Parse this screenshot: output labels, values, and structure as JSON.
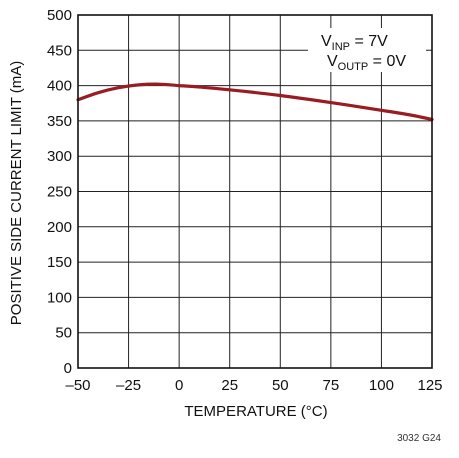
{
  "chart_data": {
    "type": "line",
    "xlabel": "TEMPERATURE (°C)",
    "ylabel": "POSITIVE SIDE CURRENT LIMIT (mA)",
    "xlim": [
      -50,
      125
    ],
    "ylim": [
      0,
      500
    ],
    "xticks": [
      -50,
      -25,
      0,
      25,
      50,
      75,
      100,
      125
    ],
    "yticks": [
      0,
      50,
      100,
      150,
      200,
      250,
      300,
      350,
      400,
      450,
      500
    ],
    "xtick_labels": [
      "–50",
      "–25",
      "0",
      "25",
      "50",
      "75",
      "100",
      "125"
    ],
    "ytick_labels": [
      "0",
      "50",
      "100",
      "150",
      "200",
      "250",
      "300",
      "350",
      "400",
      "450",
      "500"
    ],
    "grid": true,
    "series": [
      {
        "x": [
          -50,
          -40,
          -30,
          -20,
          -10,
          0,
          10,
          25,
          50,
          75,
          100,
          115,
          125
        ],
        "y": [
          380,
          390,
          397,
          401,
          402,
          400,
          398,
          394,
          386,
          376,
          365,
          358,
          352
        ]
      }
    ],
    "annotations": [
      {
        "main": "V",
        "sub": "INP",
        "rest": " = 7V"
      },
      {
        "main": "V",
        "sub": "OUTP",
        "rest": " = 0V"
      }
    ],
    "colors": {
      "line": "#9b1b23",
      "grid": "#222222",
      "axes": "#111111"
    }
  },
  "figure_id": "3032 G24"
}
